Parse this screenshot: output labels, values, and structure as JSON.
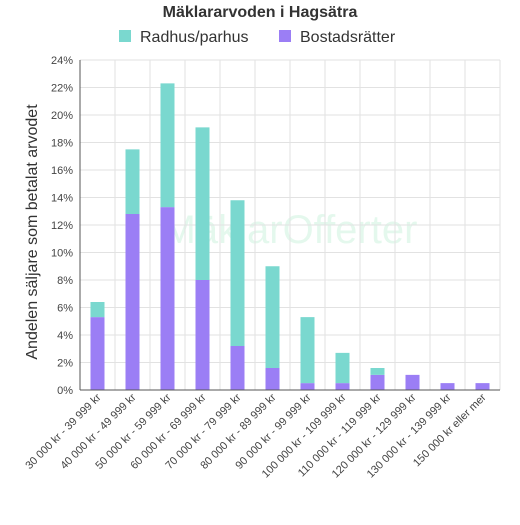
{
  "chart_data": {
    "type": "bar",
    "stacked": true,
    "title": "Mäklararvoden i Hagsätra",
    "ylabel": "Andelen säljare som betalat arvodet",
    "xlabel": "",
    "ylim": [
      0,
      24
    ],
    "ytick_step": 2,
    "ytick_suffix": "%",
    "grid": true,
    "legend_position": "top",
    "watermark": "MäklarOfferter",
    "categories": [
      "30 000 kr - 39 999 kr",
      "40 000 kr - 49 999 kr",
      "50 000 kr - 59 999 kr",
      "60 000 kr - 69 999 kr",
      "70 000 kr - 79 999 kr",
      "80 000 kr - 89 999 kr",
      "90 000 kr - 99 999 kr",
      "100 000 kr - 109 999 kr",
      "110 000 kr - 119 999 kr",
      "120 000 kr - 129 999 kr",
      "130 000 kr - 139 999 kr",
      "150 000 kr eller mer"
    ],
    "series": [
      {
        "name": "Bostadsrätter",
        "color": "#9b7ef5",
        "values": [
          5.3,
          12.8,
          13.3,
          8.0,
          3.2,
          1.6,
          0.5,
          0.5,
          1.1,
          1.1,
          0.5,
          0.5
        ]
      },
      {
        "name": "Radhus/parhus",
        "color": "#7ad8cf",
        "values": [
          1.1,
          4.7,
          9.0,
          11.1,
          10.6,
          7.4,
          4.8,
          2.2,
          0.5,
          0.0,
          0.0,
          0.0
        ]
      }
    ],
    "legend_order": [
      "Radhus/parhus",
      "Bostadsrätter"
    ]
  }
}
